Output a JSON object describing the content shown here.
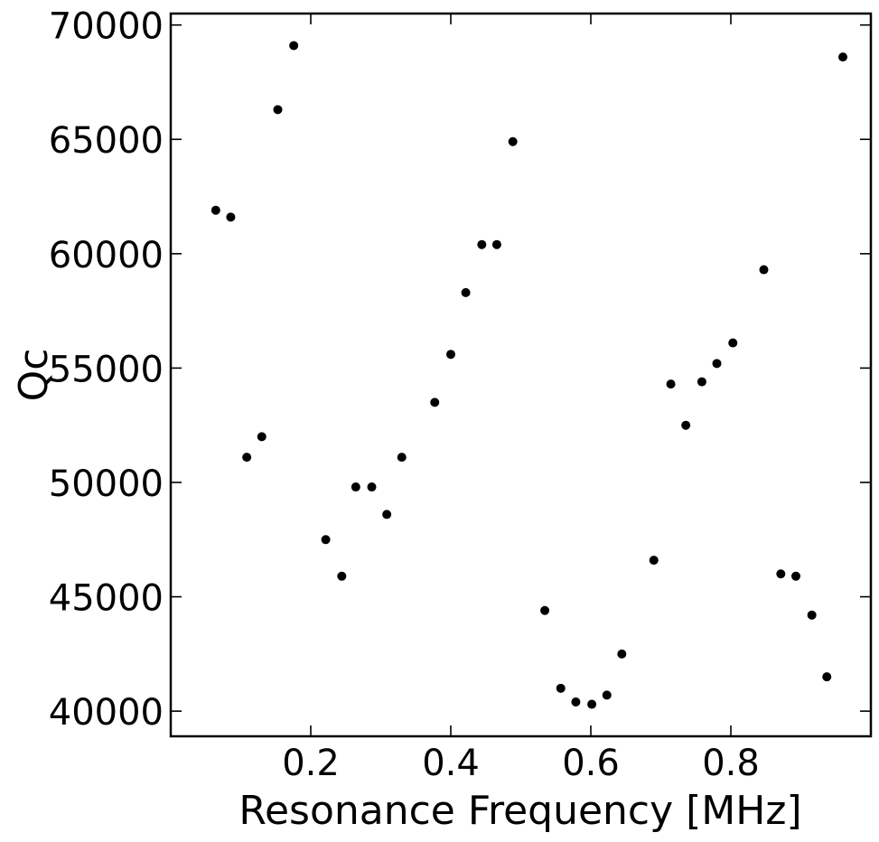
{
  "chart_data": {
    "type": "scatter",
    "title": "",
    "xlabel": "Resonance Frequency [MHz]",
    "ylabel": "Qc",
    "xlim": [
      0.0,
      1.0
    ],
    "ylim": [
      38900,
      70500
    ],
    "xticks": [
      0.2,
      0.4,
      0.6,
      0.8
    ],
    "xtick_labels": [
      "0.2",
      "0.4",
      "0.6",
      "0.8"
    ],
    "yticks": [
      40000,
      45000,
      50000,
      55000,
      60000,
      65000,
      70000
    ],
    "ytick_labels": [
      "40000",
      "45000",
      "50000",
      "55000",
      "60000",
      "65000",
      "70000"
    ],
    "grid": false,
    "legend": "none",
    "series": [
      {
        "color": "#000000",
        "x": [
          0.0643,
          0.0857,
          0.1086,
          0.13,
          0.1529,
          0.1757,
          0.2214,
          0.2443,
          0.2643,
          0.2871,
          0.3086,
          0.33,
          0.3771,
          0.4,
          0.4214,
          0.4443,
          0.4657,
          0.4886,
          0.5343,
          0.5571,
          0.5786,
          0.6014,
          0.6229,
          0.6443,
          0.69,
          0.7143,
          0.7357,
          0.7586,
          0.78,
          0.8029,
          0.8471,
          0.8714,
          0.8929,
          0.9157,
          0.9371,
          0.96
        ],
        "y": [
          61900,
          61600,
          51100,
          52000,
          66300,
          69100,
          47500,
          45900,
          49800,
          49800,
          48600,
          51100,
          53500,
          55600,
          58300,
          60400,
          60400,
          64900,
          44400,
          41000,
          40400,
          40300,
          40700,
          42500,
          46600,
          54300,
          52500,
          54400,
          55200,
          56100,
          59300,
          46000,
          45900,
          44200,
          41500,
          68600
        ]
      }
    ]
  }
}
